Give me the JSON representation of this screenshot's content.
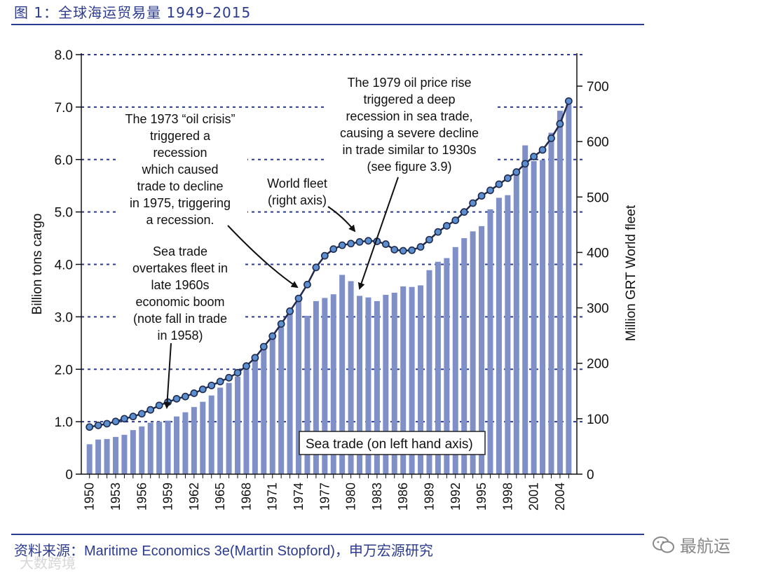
{
  "page": {
    "title": "图 1：全球海运贸易量 1949–2015",
    "source_prefix": "资料来源：",
    "source_text": "Maritime Economics 3e(Martin Stopford)，申万宏源研究",
    "watermark": "大数跨境",
    "brand": "最航运"
  },
  "colors": {
    "bar": "#7f90c9",
    "line": "#1f2a4d",
    "marker_fill": "#5b8fd0",
    "marker_stroke": "#1f2a4d",
    "grid": "#2b3b8f",
    "title": "#2b3b8f"
  },
  "chart_data": {
    "type": "bar+line",
    "title": "",
    "xlabel": "",
    "ylabel_left": "Billion tons cargo",
    "ylabel_right": "Million GRT World fleet",
    "ylim_left": [
      0,
      8
    ],
    "ylim_right": [
      0,
      760
    ],
    "yticks_left": [
      "0",
      "1.0",
      "2.0",
      "3.0",
      "4.0",
      "5.0",
      "6.0",
      "7.0",
      "8.0"
    ],
    "yticks_right": [
      "0",
      "100",
      "200",
      "300",
      "400",
      "500",
      "600",
      "700"
    ],
    "xtick_labels": [
      "1950",
      "1953",
      "1956",
      "1959",
      "1962",
      "1965",
      "1968",
      "1971",
      "1974",
      "1977",
      "1980",
      "1983",
      "1986",
      "1989",
      "1992",
      "1995",
      "1998",
      "2001",
      "2004"
    ],
    "years": [
      1950,
      1951,
      1952,
      1953,
      1954,
      1955,
      1956,
      1957,
      1958,
      1959,
      1960,
      1961,
      1962,
      1963,
      1964,
      1965,
      1966,
      1967,
      1968,
      1969,
      1970,
      1971,
      1972,
      1973,
      1974,
      1975,
      1976,
      1977,
      1978,
      1979,
      1980,
      1981,
      1982,
      1983,
      1984,
      1985,
      1986,
      1987,
      1988,
      1989,
      1990,
      1991,
      1992,
      1993,
      1994,
      1995,
      1996,
      1997,
      1998,
      1999,
      2000,
      2001,
      2002,
      2003,
      2004,
      2005
    ],
    "series": [
      {
        "name": "Sea trade (on left hand axis)",
        "type": "bar",
        "axis": "left",
        "values": [
          0.57,
          0.66,
          0.67,
          0.71,
          0.75,
          0.84,
          0.91,
          0.98,
          1.0,
          1.02,
          1.1,
          1.18,
          1.28,
          1.38,
          1.5,
          1.65,
          1.74,
          1.86,
          2.05,
          2.22,
          2.45,
          2.6,
          2.8,
          3.1,
          3.3,
          3.02,
          3.3,
          3.36,
          3.43,
          3.8,
          3.68,
          3.4,
          3.37,
          3.3,
          3.42,
          3.46,
          3.58,
          3.57,
          3.6,
          3.89,
          4.05,
          4.12,
          4.33,
          4.5,
          4.63,
          4.73,
          5.05,
          5.27,
          5.32,
          5.72,
          6.27,
          5.97,
          5.99,
          6.51,
          6.93,
          7.05
        ]
      },
      {
        "name": "World fleet (right axis)",
        "type": "line",
        "axis": "right",
        "values": [
          85,
          88,
          91,
          95,
          100,
          104,
          109,
          116,
          124,
          130,
          136,
          140,
          146,
          153,
          160,
          167,
          174,
          183,
          195,
          210,
          230,
          249,
          271,
          294,
          317,
          342,
          373,
          394,
          406,
          413,
          416,
          419,
          421,
          420,
          415,
          405,
          403,
          404,
          410,
          423,
          437,
          448,
          458,
          473,
          489,
          502,
          512,
          523,
          534,
          545,
          560,
          573,
          585,
          606,
          632,
          673
        ]
      }
    ],
    "annotations": {
      "oil_crisis": [
        "The 1973 “oil crisis”",
        "triggered a",
        "recession",
        "which caused",
        "trade to decline",
        "in 1975, triggering",
        "a recession."
      ],
      "oil_price": [
        "The 1979 oil price rise",
        "triggered a deep",
        "recession in sea trade,",
        "causing a severe decline",
        "in trade similar to 1930s",
        "(see figure 3.9)"
      ],
      "world_fleet": [
        "World fleet",
        "(right axis)"
      ],
      "sea_trade": [
        "Sea trade",
        "overtakes fleet in",
        "late 1960s",
        "economic boom",
        "(note fall in trade",
        "in 1958)"
      ],
      "legend_box": "Sea trade (on left hand axis)"
    }
  }
}
